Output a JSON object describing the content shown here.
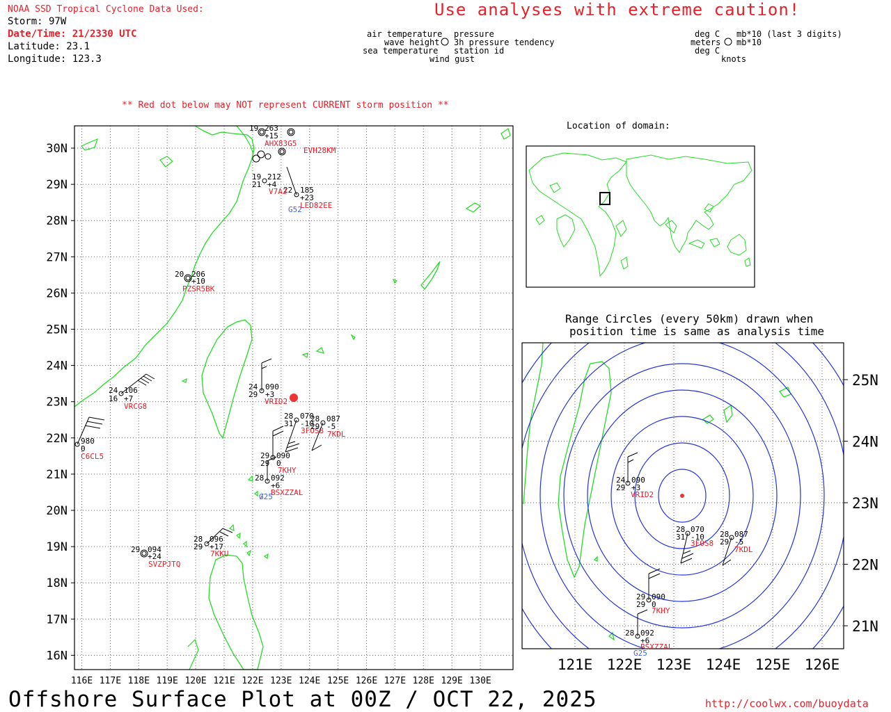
{
  "header": {
    "source_title": "NOAA SSD Tropical Cyclone Data Used:",
    "storm": "Storm: 97W",
    "datetime": "Date/Time: 21/2330 UTC",
    "latitude": "Latitude: 23.1",
    "longitude": "Longitude: 123.3",
    "caution": "Use analyses with extreme caution!",
    "red_dot_note": "** Red dot below may NOT represent CURRENT storm position **"
  },
  "legend_station": {
    "air_temperature": "air temperature",
    "pressure": "pressure",
    "wave_height": "wave height",
    "pressure_tendency": "3h pressure tendency",
    "sea_temperature": "sea temperature",
    "station_id": "station id",
    "wind_gust": "wind gust"
  },
  "legend_units": {
    "deg_c_1": "deg C",
    "mb_last3": "mb*10 (last 3 digits)",
    "meters": "meters",
    "mb_10": "mb*10",
    "deg_c_2": "deg C",
    "knots": "knots"
  },
  "main_map": {
    "lat_labels": [
      "30N",
      "29N",
      "28N",
      "27N",
      "26N",
      "25N",
      "24N",
      "23N",
      "22N",
      "21N",
      "20N",
      "19N",
      "18N",
      "17N",
      "16N"
    ],
    "lon_labels": [
      "116E",
      "117E",
      "118E",
      "119E",
      "120E",
      "121E",
      "122E",
      "123E",
      "124E",
      "125E",
      "126E",
      "127E",
      "128E",
      "129E",
      "130E"
    ],
    "stations": [
      {
        "id": "VRCG8",
        "t": "24",
        "p": "106",
        "s": "16",
        "d": "+7"
      },
      {
        "id": "C6CL5",
        "t": "",
        "p": "980",
        "s": "",
        "d": "0"
      },
      {
        "id": "PZSR5BK",
        "t": "20",
        "p": "206",
        "s": "",
        "d": "+10"
      },
      {
        "id": "VRID2",
        "t": "24",
        "p": "090",
        "s": "29",
        "d": "+3"
      },
      {
        "id": "3FOS8",
        "t": "28",
        "p": "070",
        "s": "31",
        "d": "-10"
      },
      {
        "id": "7KDL",
        "t": "28",
        "p": "087",
        "s": "29",
        "d": "-5"
      },
      {
        "id": "7KHY",
        "t": "29",
        "p": "090",
        "s": "29",
        "d": "0"
      },
      {
        "id": "BSXZZAL",
        "t": "28",
        "p": "092",
        "s": "",
        "d": "+6",
        "gust": "G25"
      },
      {
        "id": "7KKU",
        "t": "28",
        "p": "096",
        "s": "29",
        "d": "+17"
      },
      {
        "id": "SVZPJTQ",
        "t": "29",
        "p": "094",
        "s": "",
        "d": "+24"
      },
      {
        "id": "LED82EE",
        "t": "22",
        "p": "185",
        "s": "",
        "d": "+23",
        "gust": "G52"
      },
      {
        "id": "V7A2",
        "t": "19",
        "p": "212",
        "s": "21",
        "d": "+4"
      },
      {
        "id": "EVH28KM",
        "t": "",
        "p": "",
        "s": "",
        "d": ""
      },
      {
        "id": "AHX83G5",
        "t": "19",
        "p": "263",
        "s": "",
        "d": "+15"
      }
    ]
  },
  "locator": {
    "title": "Location of domain:"
  },
  "inset": {
    "title_line1": "Range Circles (every 50km) drawn when",
    "title_line2": "position time is same as analysis time",
    "lat_labels": [
      "25N",
      "24N",
      "23N",
      "22N",
      "21N"
    ],
    "lon_labels": [
      "121E",
      "122E",
      "123E",
      "124E",
      "125E",
      "126E"
    ],
    "stations": [
      {
        "id": "VRID2",
        "t": "24",
        "p": "090",
        "s": "29",
        "d": "+3"
      },
      {
        "id": "3FOS8",
        "t": "28",
        "p": "070",
        "s": "31",
        "d": "-10"
      },
      {
        "id": "7KDL",
        "t": "28",
        "p": "087",
        "s": "29",
        "d": "-5"
      },
      {
        "id": "7KHY",
        "t": "29",
        "p": "090",
        "s": "29",
        "d": "0"
      },
      {
        "id": "BSXZZAL",
        "t": "28",
        "p": "092",
        "s": "",
        "d": "+6",
        "gust": "G25"
      }
    ]
  },
  "footer": {
    "title": "Offshore Surface Plot at 00Z / OCT 22, 2025",
    "url": "http://coolwx.com/buoydata"
  },
  "colors": {
    "land": "#22dd22",
    "circles": "#2233dd",
    "storm": "#ee3333",
    "label_red": "#e8202a",
    "gust_blue": "#4466dd"
  }
}
